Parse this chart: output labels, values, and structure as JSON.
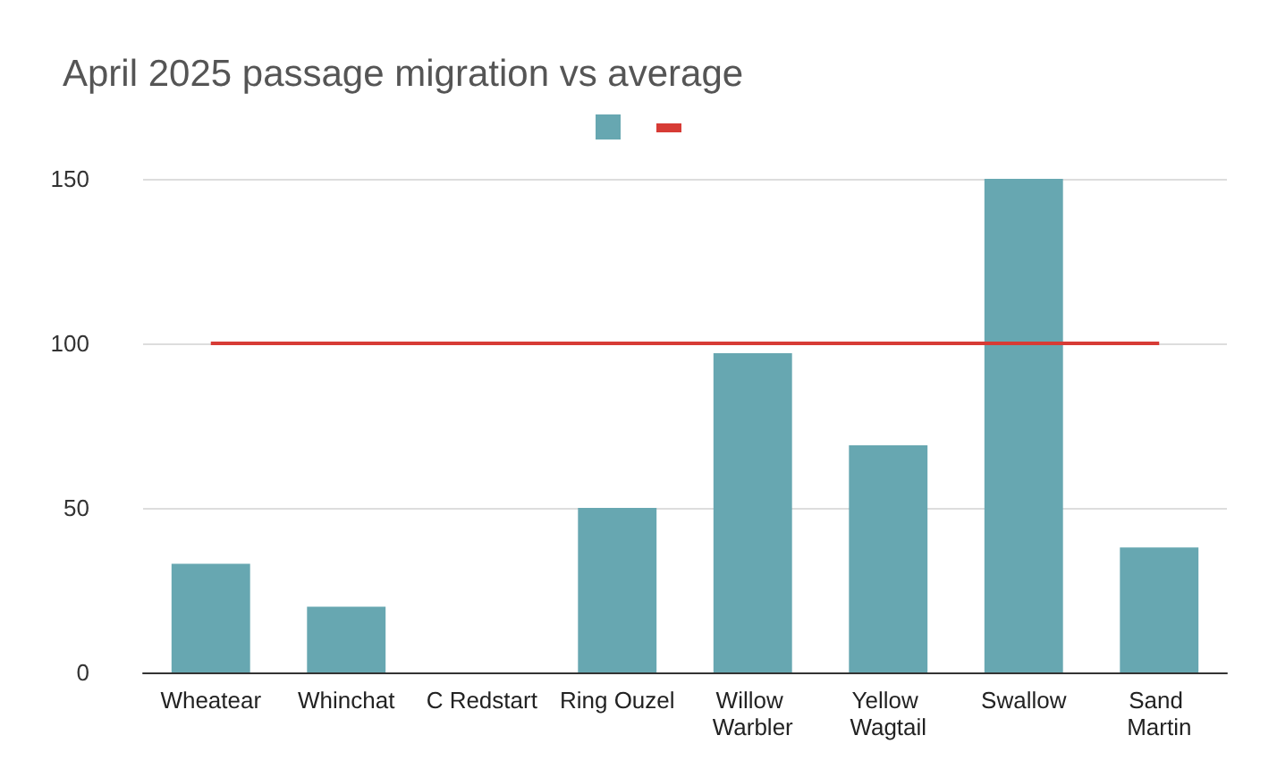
{
  "chart_data": {
    "type": "bar",
    "title": "April 2025 passage migration vs average",
    "categories": [
      "Wheatear",
      "Whinchat",
      "C Redstart",
      "Ring Ouzel",
      "Willow Warbler",
      "Yellow Wagtail",
      "Swallow",
      "Sand Martin"
    ],
    "series": [
      {
        "color": "#67a7b1",
        "values": [
          33,
          20,
          0,
          50,
          97,
          69,
          150,
          38
        ]
      },
      {
        "type": "line",
        "color": "#d73b35",
        "values": [
          100,
          100,
          100,
          100,
          100,
          100,
          100,
          100
        ]
      }
    ],
    "ylim": [
      0,
      150
    ],
    "yticks": [
      0,
      50,
      100,
      150
    ],
    "grid": "y",
    "marker": "none"
  }
}
